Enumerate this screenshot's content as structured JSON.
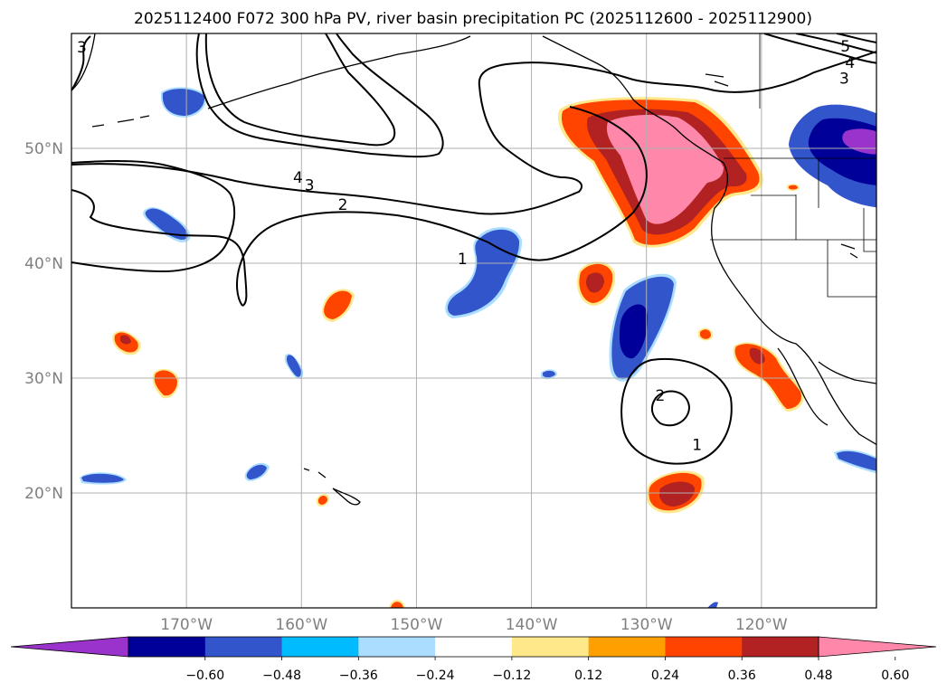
{
  "title": "2025112400 F072 300 hPa PV, river basin precipitation PC (2025112600 - 2025112900)",
  "map": {
    "lon_range": [
      -180,
      -110
    ],
    "lat_range": [
      10,
      60
    ],
    "lon_ticks": [
      {
        "value": -170,
        "label": "170°W"
      },
      {
        "value": -160,
        "label": "160°W"
      },
      {
        "value": -150,
        "label": "150°W"
      },
      {
        "value": -140,
        "label": "140°W"
      },
      {
        "value": -130,
        "label": "130°W"
      },
      {
        "value": -120,
        "label": "120°W"
      }
    ],
    "lat_ticks": [
      {
        "value": 20,
        "label": "20°N"
      },
      {
        "value": 30,
        "label": "30°N"
      },
      {
        "value": 40,
        "label": "40°N"
      },
      {
        "value": 50,
        "label": "50°N"
      }
    ],
    "contour_labels": [
      {
        "text": "3",
        "lon": -179.1,
        "lat": 58.8
      },
      {
        "text": "4",
        "lon": -160.3,
        "lat": 47.5
      },
      {
        "text": "3",
        "lon": -159.3,
        "lat": 46.8
      },
      {
        "text": "2",
        "lon": -156.4,
        "lat": 45.1
      },
      {
        "text": "1",
        "lon": -146.0,
        "lat": 40.4
      },
      {
        "text": "2",
        "lon": -128.8,
        "lat": 28.5
      },
      {
        "text": "1",
        "lon": -125.6,
        "lat": 24.2
      },
      {
        "text": "5",
        "lon": -112.7,
        "lat": 58.9
      },
      {
        "text": "4",
        "lon": -112.3,
        "lat": 57.5
      },
      {
        "text": "3",
        "lon": -112.8,
        "lat": 56.1
      }
    ]
  },
  "colorbar": {
    "ticks": [
      "−0.60",
      "−0.48",
      "−0.36",
      "−0.24",
      "−0.12",
      "0.12",
      "0.24",
      "0.36",
      "0.48",
      "0.60"
    ],
    "colors": [
      "#9933cc",
      "#000099",
      "#3355cc",
      "#00bbff",
      "#aaddff",
      "#ffffff",
      "#ffe88a",
      "#ffa000",
      "#ff4400",
      "#b22222",
      "#ff88aa"
    ]
  }
}
